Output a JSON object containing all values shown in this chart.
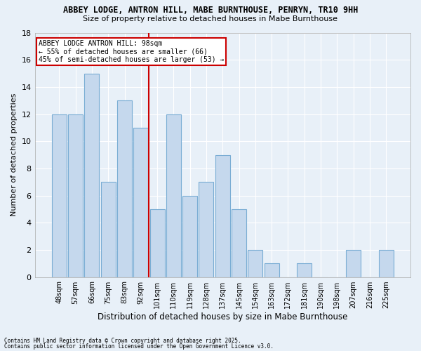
{
  "title1": "ABBEY LODGE, ANTRON HILL, MABE BURNTHOUSE, PENRYN, TR10 9HH",
  "title2": "Size of property relative to detached houses in Mabe Burnthouse",
  "xlabel": "Distribution of detached houses by size in Mabe Burnthouse",
  "ylabel": "Number of detached properties",
  "categories": [
    "48sqm",
    "57sqm",
    "66sqm",
    "75sqm",
    "83sqm",
    "92sqm",
    "101sqm",
    "110sqm",
    "119sqm",
    "128sqm",
    "137sqm",
    "145sqm",
    "154sqm",
    "163sqm",
    "172sqm",
    "181sqm",
    "190sqm",
    "198sqm",
    "207sqm",
    "216sqm",
    "225sqm"
  ],
  "values": [
    12,
    12,
    15,
    7,
    13,
    11,
    5,
    12,
    6,
    7,
    9,
    5,
    2,
    1,
    0,
    1,
    0,
    0,
    2,
    0,
    2
  ],
  "bar_color": "#c5d8ed",
  "bar_edge_color": "#7aadd4",
  "bg_color": "#e8f0f8",
  "grid_color": "#ffffff",
  "ref_line_color": "#cc0000",
  "annotation_title": "ABBEY LODGE ANTRON HILL: 98sqm",
  "annotation_line1": "← 55% of detached houses are smaller (66)",
  "annotation_line2": "45% of semi-detached houses are larger (53) →",
  "annotation_box_color": "#cc0000",
  "footer1": "Contains HM Land Registry data © Crown copyright and database right 2025.",
  "footer2": "Contains public sector information licensed under the Open Government Licence v3.0.",
  "ylim": [
    0,
    18
  ],
  "yticks": [
    0,
    2,
    4,
    6,
    8,
    10,
    12,
    14,
    16,
    18
  ]
}
